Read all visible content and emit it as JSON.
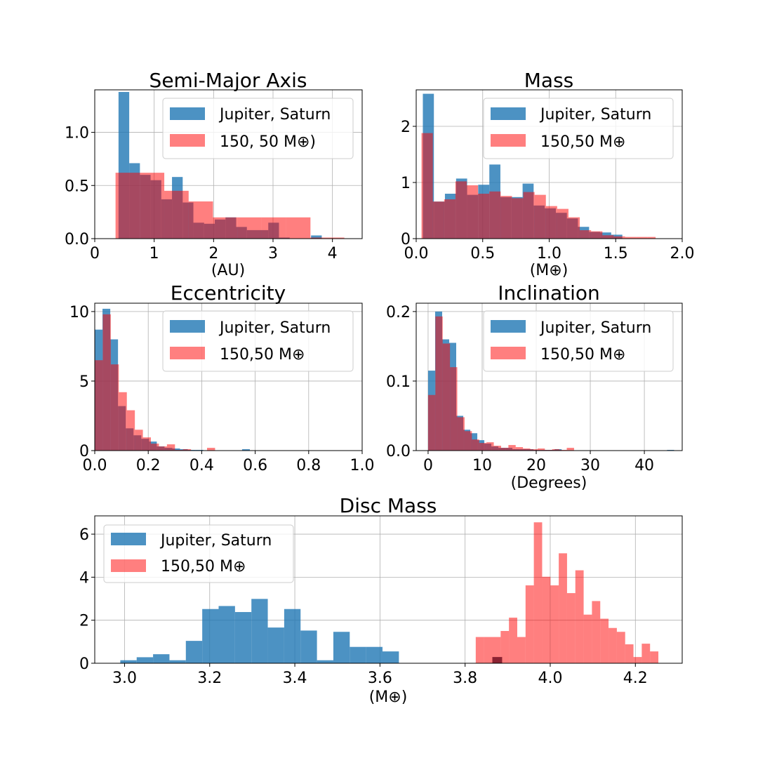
{
  "colors": {
    "series_a": "#1f77b4",
    "series_b": "#ff0000"
  },
  "chart_data": [
    {
      "id": "semi-major-axis",
      "type": "histogram",
      "title": "Semi-Major Axis",
      "xlabel": "(AU)",
      "xlim": [
        0,
        4.5
      ],
      "ylim": [
        0,
        1.4
      ],
      "xticks": [
        0,
        1,
        2,
        3,
        4
      ],
      "xtick_labels": [
        "0",
        "1",
        "2",
        "3",
        "4"
      ],
      "yticks": [
        0,
        0.5,
        1.0
      ],
      "ytick_labels": [
        "0.0",
        "0.5",
        "1.0"
      ],
      "legend": {
        "entries": [
          "Jupiter, Saturn",
          "150, 50 M⊕)"
        ],
        "loc": "upper right"
      },
      "series": [
        {
          "name": "Jupiter, Saturn",
          "color": "#1f77b4",
          "alpha": 0.8,
          "edges": [
            0.4,
            0.58,
            0.76,
            0.94,
            1.12,
            1.3,
            1.48,
            1.66,
            1.84,
            2.02,
            2.2,
            2.38,
            2.56,
            2.74,
            2.92,
            3.1,
            3.28,
            3.46,
            3.64,
            3.82
          ],
          "values": [
            1.38,
            0.71,
            0.6,
            0.55,
            0.37,
            0.58,
            0.34,
            0.15,
            0.14,
            0.18,
            0.2,
            0.11,
            0.08,
            0.08,
            0.15,
            0.01,
            0.0,
            0.0,
            0.03
          ]
        },
        {
          "name": "150, 50 M⊕)",
          "color": "#ff0000",
          "alpha": 0.5,
          "edges": [
            0.35,
            0.76,
            1.17,
            1.58,
            1.99,
            2.4,
            2.81,
            3.22,
            3.63,
            4.04,
            4.2
          ],
          "values": [
            0.62,
            0.62,
            0.45,
            0.35,
            0.2,
            0.2,
            0.2,
            0.2,
            0.01,
            0.01
          ]
        }
      ]
    },
    {
      "id": "mass",
      "type": "histogram",
      "title": "Mass",
      "xlabel": "(M⊕)",
      "xlim": [
        0,
        2.0
      ],
      "ylim": [
        0,
        2.65
      ],
      "xticks": [
        0,
        0.5,
        1.0,
        1.5,
        2.0
      ],
      "xtick_labels": [
        "0.0",
        "0.5",
        "1.0",
        "1.5",
        "2.0"
      ],
      "yticks": [
        0,
        1,
        2
      ],
      "ytick_labels": [
        "0",
        "1",
        "2"
      ],
      "legend": {
        "entries": [
          "Jupiter, Saturn",
          "150,50 M⊕"
        ],
        "loc": "upper right"
      },
      "series": [
        {
          "name": "Jupiter, Saturn",
          "color": "#1f77b4",
          "alpha": 0.8,
          "edges": [
            0.05,
            0.133,
            0.216,
            0.3,
            0.383,
            0.466,
            0.55,
            0.633,
            0.716,
            0.8,
            0.883,
            0.966,
            1.05,
            1.133,
            1.216,
            1.3,
            1.383,
            1.466,
            1.55
          ],
          "values": [
            2.58,
            0.66,
            0.8,
            1.07,
            0.78,
            0.96,
            1.32,
            0.74,
            0.74,
            0.98,
            0.59,
            0.54,
            0.46,
            0.36,
            0.21,
            0.12,
            0.11,
            0.07
          ]
        },
        {
          "name": "150,50 M⊕",
          "color": "#ff0000",
          "alpha": 0.5,
          "edges": [
            0.04,
            0.125,
            0.21,
            0.295,
            0.38,
            0.465,
            0.55,
            0.635,
            0.72,
            0.805,
            0.89,
            0.975,
            1.06,
            1.145,
            1.23,
            1.315,
            1.4,
            1.485,
            1.57,
            1.655,
            1.74,
            1.8
          ],
          "values": [
            1.88,
            0.66,
            0.7,
            1.02,
            0.95,
            0.8,
            0.84,
            0.76,
            0.72,
            0.83,
            0.78,
            0.58,
            0.53,
            0.38,
            0.15,
            0.13,
            0.06,
            0.04,
            0.03,
            0.03,
            0.03
          ]
        }
      ]
    },
    {
      "id": "eccentricity",
      "type": "histogram",
      "title": "Eccentricity",
      "xlabel": "",
      "xlim": [
        0,
        1.0
      ],
      "ylim": [
        0,
        10.6
      ],
      "xticks": [
        0,
        0.2,
        0.4,
        0.6,
        0.8,
        1.0
      ],
      "xtick_labels": [
        "0.0",
        "0.2",
        "0.4",
        "0.6",
        "0.8",
        "1.0"
      ],
      "yticks": [
        0,
        5,
        10
      ],
      "ytick_labels": [
        "0",
        "5",
        "10"
      ],
      "legend": {
        "entries": [
          "Jupiter, Saturn",
          "150,50 M⊕"
        ],
        "loc": "upper right"
      },
      "series": [
        {
          "name": "Jupiter, Saturn",
          "color": "#1f77b4",
          "alpha": 0.8,
          "edges": [
            0.0,
            0.029,
            0.058,
            0.087,
            0.116,
            0.145,
            0.174,
            0.203,
            0.232,
            0.261,
            0.29,
            0.319,
            0.348,
            0.377,
            0.406,
            0.435,
            0.464,
            0.493,
            0.522,
            0.551,
            0.58
          ],
          "values": [
            8.7,
            10.2,
            8.0,
            3.2,
            1.6,
            1.1,
            0.85,
            0.65,
            0.3,
            0.2,
            0.15,
            0.1,
            0.05,
            0.05,
            0.0,
            0.0,
            0.0,
            0.0,
            0.0,
            0.1
          ]
        },
        {
          "name": "150,50 M⊕",
          "color": "#ff0000",
          "alpha": 0.5,
          "edges": [
            0.0,
            0.03,
            0.06,
            0.09,
            0.12,
            0.15,
            0.18,
            0.21,
            0.24,
            0.27,
            0.3,
            0.33,
            0.36,
            0.39,
            0.42,
            0.45,
            0.48
          ],
          "values": [
            6.5,
            9.8,
            6.2,
            4.2,
            2.9,
            1.5,
            0.95,
            0.5,
            0.3,
            0.45,
            0.05,
            0.1,
            0.0,
            0.0,
            0.2,
            0.0
          ]
        }
      ]
    },
    {
      "id": "inclination",
      "type": "histogram",
      "title": "Inclination",
      "xlabel": "(Degrees)",
      "xlim": [
        -2.2,
        47
      ],
      "ylim": [
        0,
        0.212
      ],
      "xticks": [
        0,
        10,
        20,
        30,
        40
      ],
      "xtick_labels": [
        "0",
        "10",
        "20",
        "30",
        "40"
      ],
      "yticks": [
        0,
        0.1,
        0.2
      ],
      "ytick_labels": [
        "0.0",
        "0.1",
        "0.2"
      ],
      "legend": {
        "entries": [
          "Jupiter, Saturn",
          "150,50 M⊕"
        ],
        "loc": "upper right"
      },
      "series": [
        {
          "name": "Jupiter, Saturn",
          "color": "#1f77b4",
          "alpha": 0.8,
          "edges": [
            0.0,
            1.3,
            2.6,
            3.9,
            5.2,
            6.5,
            7.8,
            9.1,
            10.4,
            11.7,
            13.0,
            14.3,
            15.6,
            16.9,
            18.2,
            19.5,
            20.8,
            22.1,
            23.4,
            24.7,
            26.0,
            27.3,
            28.6,
            29.9,
            31.2,
            32.5,
            33.8,
            35.1,
            36.4,
            37.7,
            39.0,
            40.3,
            41.6,
            42.9,
            44.2,
            45.5
          ],
          "values": [
            0.115,
            0.2,
            0.16,
            0.155,
            0.05,
            0.03,
            0.025,
            0.015,
            0.01,
            0.006,
            0.004,
            0.004,
            0.002,
            0.002,
            0.002,
            0.001,
            0.001,
            0.001,
            0.002,
            0.0,
            0.0,
            0.0,
            0.0,
            0.0,
            0.0,
            0.0,
            0.0,
            0.0,
            0.0,
            0.0,
            0.0,
            0.0,
            0.0,
            0.0,
            0.001
          ]
        },
        {
          "name": "150,50 M⊕",
          "color": "#ff0000",
          "alpha": 0.5,
          "edges": [
            0.0,
            1.35,
            2.7,
            4.05,
            5.4,
            6.75,
            8.1,
            9.45,
            10.8,
            12.15,
            13.5,
            14.85,
            16.2,
            17.55,
            18.9,
            20.25,
            21.6,
            22.95,
            24.3,
            25.65,
            27.0
          ],
          "values": [
            0.08,
            0.193,
            0.154,
            0.12,
            0.048,
            0.028,
            0.016,
            0.011,
            0.012,
            0.007,
            0.004,
            0.008,
            0.005,
            0.003,
            0.002,
            0.003,
            0.001,
            0.002,
            0.001,
            0.004
          ]
        }
      ]
    },
    {
      "id": "disc-mass",
      "type": "histogram",
      "title": "Disc Mass",
      "xlabel": "(M⊕)",
      "xlim": [
        2.93,
        4.31
      ],
      "ylim": [
        0,
        6.85
      ],
      "xticks": [
        3.0,
        3.2,
        3.4,
        3.6,
        3.8,
        4.0,
        4.2
      ],
      "xtick_labels": [
        "3.0",
        "3.2",
        "3.4",
        "3.6",
        "3.8",
        "4.0",
        "4.2"
      ],
      "yticks": [
        0,
        2,
        4,
        6
      ],
      "ytick_labels": [
        "0",
        "2",
        "4",
        "6"
      ],
      "legend": {
        "entries": [
          "Jupiter, Saturn",
          "150,50 M⊕"
        ],
        "loc": "upper left"
      },
      "series": [
        {
          "name": "Jupiter, Saturn",
          "color": "#1f77b4",
          "alpha": 0.8,
          "edges": [
            2.99,
            3.0285,
            3.067,
            3.1055,
            3.144,
            3.1825,
            3.221,
            3.2595,
            3.298,
            3.3365,
            3.375,
            3.4135,
            3.452,
            3.4905,
            3.529,
            3.5675,
            3.606,
            3.6445,
            3.683,
            3.7215,
            3.76
          ],
          "values": [
            0.14,
            0.28,
            0.42,
            0.14,
            1.04,
            2.52,
            2.66,
            2.38,
            2.99,
            1.66,
            2.52,
            1.52,
            0.14,
            1.46,
            0.76,
            0.76,
            0.55,
            0.0,
            0.0,
            0.0
          ]
        },
        {
          "name": "150,50 M⊕",
          "color": "#ff0000",
          "alpha": 0.5,
          "edges": [
            3.825,
            3.8445,
            3.864,
            3.8835,
            3.903,
            3.9225,
            3.942,
            3.9615,
            3.981,
            4.0005,
            4.02,
            4.0395,
            4.059,
            4.0785,
            4.098,
            4.1175,
            4.137,
            4.1565,
            4.176,
            4.1955,
            4.215,
            4.2345,
            4.254
          ],
          "values": [
            1.22,
            1.22,
            1.22,
            1.5,
            2.12,
            1.22,
            3.62,
            6.55,
            4.02,
            3.62,
            5.11,
            3.26,
            4.32,
            2.26,
            2.89,
            2.07,
            1.64,
            1.46,
            0.88,
            0.29,
            0.91,
            0.55
          ]
        },
        {
          "name": "overlap",
          "color": "#8b2232",
          "alpha": 1.0,
          "edges": [
            3.864,
            3.887
          ],
          "values": [
            0.29
          ]
        }
      ]
    }
  ]
}
